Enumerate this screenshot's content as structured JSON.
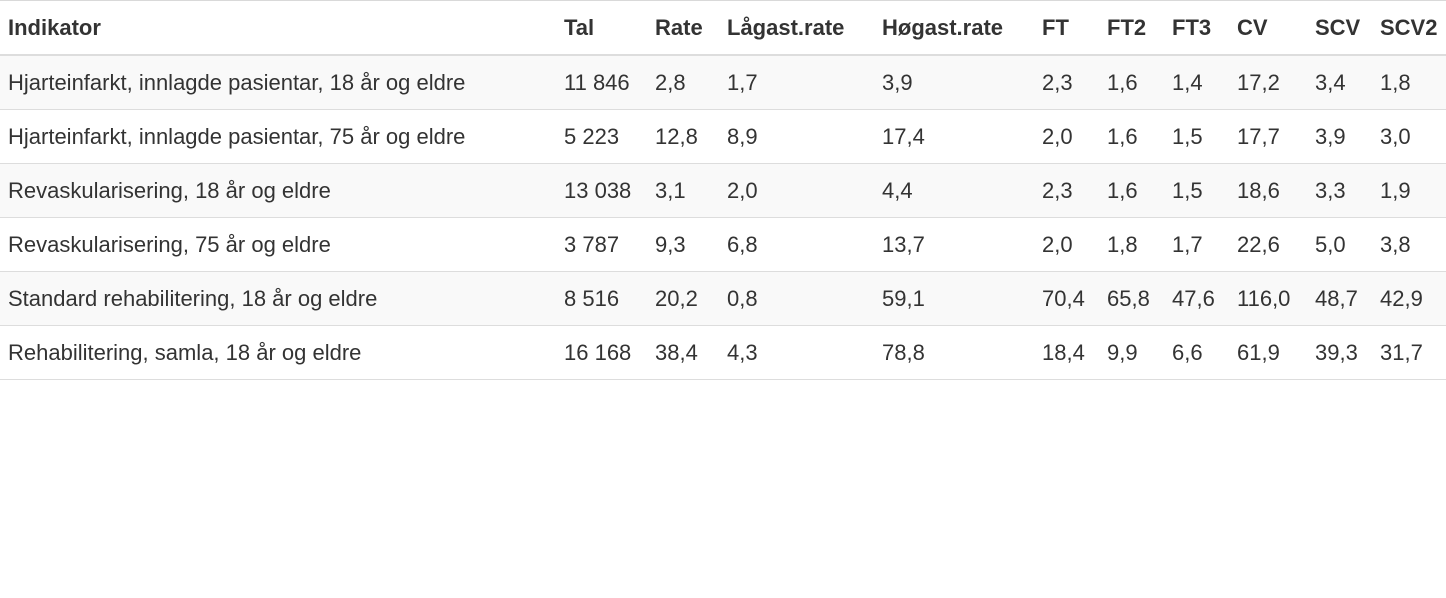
{
  "table": {
    "headers": [
      "Indikator",
      "Tal",
      "Rate",
      "Lågast.rate",
      "Høgast.rate",
      "FT",
      "FT2",
      "FT3",
      "CV",
      "SCV",
      "SCV2"
    ],
    "rows": [
      [
        "Hjarteinfarkt, innlagde pasientar, 18 år og eldre",
        "11 846",
        "2,8",
        "1,7",
        "3,9",
        "2,3",
        "1,6",
        "1,4",
        "17,2",
        "3,4",
        "1,8"
      ],
      [
        "Hjarteinfarkt, innlagde pasientar, 75 år og eldre",
        "5 223",
        "12,8",
        "8,9",
        "17,4",
        "2,0",
        "1,6",
        "1,5",
        "17,7",
        "3,9",
        "3,0"
      ],
      [
        "Revaskularisering, 18 år og eldre",
        "13 038",
        "3,1",
        "2,0",
        "4,4",
        "2,3",
        "1,6",
        "1,5",
        "18,6",
        "3,3",
        "1,9"
      ],
      [
        "Revaskularisering, 75 år og eldre",
        "3 787",
        "9,3",
        "6,8",
        "13,7",
        "2,0",
        "1,8",
        "1,7",
        "22,6",
        "5,0",
        "3,8"
      ],
      [
        "Standard rehabilitering, 18 år og eldre",
        "8 516",
        "20,2",
        "0,8",
        "59,1",
        "70,4",
        "65,8",
        "47,6",
        "116,0",
        "48,7",
        "42,9"
      ],
      [
        "Rehabilitering, samla, 18 år og eldre",
        "16 168",
        "38,4",
        "4,3",
        "78,8",
        "18,4",
        "9,9",
        "6,6",
        "61,9",
        "39,3",
        "31,7"
      ]
    ]
  }
}
